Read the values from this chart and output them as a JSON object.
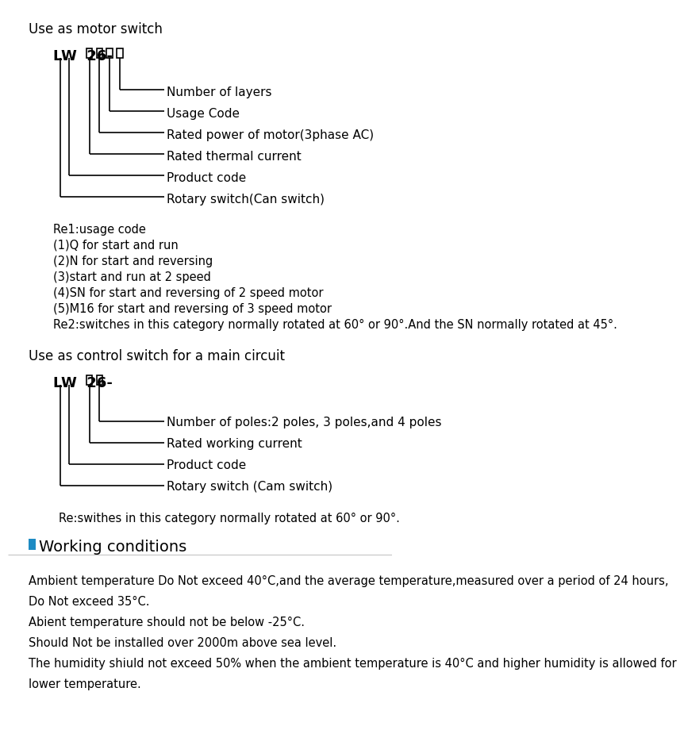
{
  "bg_color": "#ffffff",
  "title_motor": "Use as motor switch",
  "title_control": "Use as control switch for a main circuit",
  "lw_motor": "LW  26-□  □  □  □",
  "lw_control": "LW  26-□  □",
  "motor_labels": [
    "Number of layers",
    "Usage Code",
    "Rated power of motor(3phase AC)",
    "Rated thermal current",
    "Product code",
    "Rotary switch(Can switch)"
  ],
  "control_labels": [
    "Number of poles:2 poles, 3 poles,and 4 poles",
    "Rated working current",
    "Product code",
    "Rotary switch (Cam switch)"
  ],
  "motor_notes": [
    "Re1:usage code",
    "(1)Q for start and run",
    "(2)N for start and reversing",
    "(3)start and run at 2 speed",
    "(4)SN for start and reversing of 2 speed motor",
    "(5)M16 for start and reversing of 3 speed motor",
    "Re2:switches in this category normally rotated at 60° or 90°.And the SN normally rotated at 45°."
  ],
  "control_note": "Re:swithes in this category normally rotated at 60° or 90°.",
  "working_title": "Working conditions",
  "working_lines": [
    "Ambient temperature Do Not exceed 40°C,and the average temperature,measured over a period of 24 hours,",
    "Do Not exceed 35°C.",
    "Abient temperature should not be below -25°C.",
    "Should Not be installed over 2000m above sea level.",
    "The humidity shiuld not exceed 50% when the ambient temperature is 40°C and higher humidity is allowed for",
    "lower temperature."
  ],
  "blue_square_color": "#1e8bc3",
  "line_color": "#000000",
  "divider_color": "#cccccc"
}
